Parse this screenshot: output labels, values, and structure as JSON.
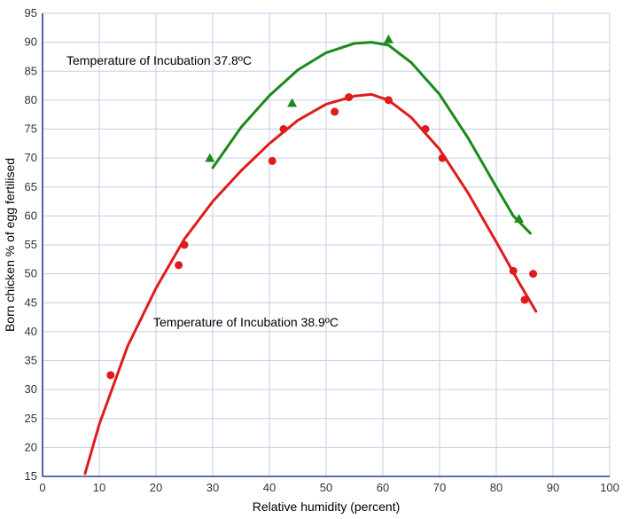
{
  "chart_data": {
    "type": "scatter",
    "title": "",
    "xlabel": "Relative humidity (percent)",
    "ylabel": "Born chicken % of egg fertilised",
    "xlim": [
      0,
      100
    ],
    "ylim": [
      15,
      95
    ],
    "x_ticks": [
      0,
      10,
      20,
      30,
      40,
      50,
      60,
      70,
      80,
      90,
      100
    ],
    "y_ticks": [
      15,
      20,
      25,
      30,
      35,
      40,
      45,
      50,
      55,
      60,
      65,
      70,
      75,
      80,
      85,
      90,
      95
    ],
    "grid": true,
    "legend": "none",
    "series": [
      {
        "annotation": "Temperature of Incubation 37.8ºC",
        "color": "#1a8a1a",
        "marker": "triangle",
        "points": [
          [
            29.5,
            70
          ],
          [
            44,
            79.5
          ],
          [
            61,
            90.5
          ],
          [
            84,
            59.5
          ]
        ],
        "fit_curve": [
          [
            30,
            68.3
          ],
          [
            35,
            75.3
          ],
          [
            40,
            80.8
          ],
          [
            45,
            85.2
          ],
          [
            50,
            88.2
          ],
          [
            55,
            89.8
          ],
          [
            58,
            90
          ],
          [
            61,
            89.5
          ],
          [
            65,
            86.5
          ],
          [
            70,
            81
          ],
          [
            75,
            73.5
          ],
          [
            80,
            65
          ],
          [
            83,
            60
          ],
          [
            86,
            57
          ]
        ]
      },
      {
        "annotation": "Temperature of Incubation 38.9ºC",
        "color": "#e01b1b",
        "marker": "circle",
        "points": [
          [
            12,
            32.5
          ],
          [
            24,
            51.5
          ],
          [
            25,
            55
          ],
          [
            40.5,
            69.5
          ],
          [
            42.5,
            75
          ],
          [
            51.5,
            78
          ],
          [
            54,
            80.5
          ],
          [
            61,
            80
          ],
          [
            67.5,
            75
          ],
          [
            70.5,
            70
          ],
          [
            83,
            50.5
          ],
          [
            85,
            45.5
          ],
          [
            86.5,
            50
          ]
        ],
        "fit_curve": [
          [
            7.5,
            15.5
          ],
          [
            10,
            24
          ],
          [
            15,
            37.5
          ],
          [
            20,
            47.5
          ],
          [
            25,
            56
          ],
          [
            30,
            62.5
          ],
          [
            35,
            67.8
          ],
          [
            40,
            72.5
          ],
          [
            45,
            76.5
          ],
          [
            50,
            79.3
          ],
          [
            55,
            80.7
          ],
          [
            58,
            81
          ],
          [
            61,
            80
          ],
          [
            65,
            77
          ],
          [
            70,
            71.5
          ],
          [
            75,
            64
          ],
          [
            80,
            55.5
          ],
          [
            84,
            48.5
          ],
          [
            87,
            43.5
          ]
        ]
      }
    ]
  }
}
